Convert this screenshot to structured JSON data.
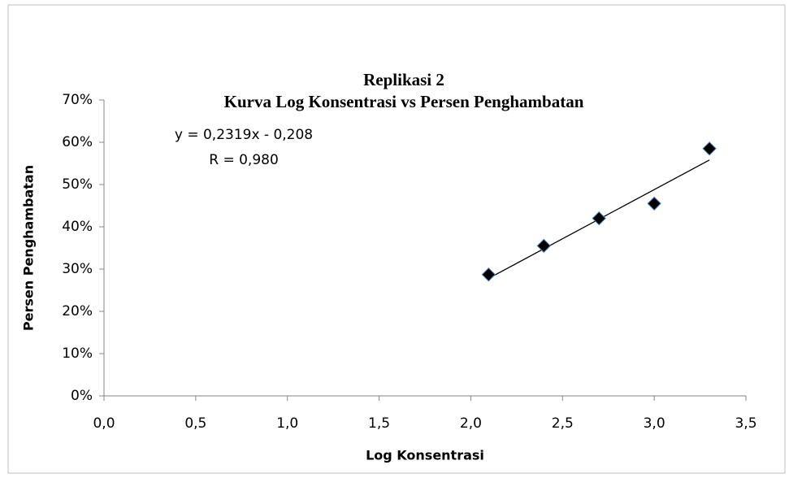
{
  "chart_data": {
    "type": "scatter",
    "title": "Replikasi 2",
    "subtitle": "Kurva Log Konsentrasi vs Persen Penghambatan",
    "xlabel": "Log Konsentrasi",
    "ylabel": "Persen Penghambatan",
    "annotations": [
      "y = 0,2319x - 0,208",
      "R = 0,980"
    ],
    "x": [
      2.097,
      2.398,
      2.699,
      3.0,
      3.301
    ],
    "values": [
      28.7,
      35.5,
      42.0,
      45.5,
      58.5
    ],
    "color": "#000000",
    "trendline": {
      "x": [
        2.097,
        3.301
      ],
      "values": [
        27.8,
        55.8
      ],
      "color": "#000000"
    },
    "xlim": [
      0,
      3.5
    ],
    "xticks": [
      {
        "value": 0,
        "label": "0,0"
      },
      {
        "value": 0.5,
        "label": "0,5"
      },
      {
        "value": 1,
        "label": "1,0"
      },
      {
        "value": 1.5,
        "label": "1,5"
      },
      {
        "value": 2,
        "label": "2,0"
      },
      {
        "value": 2.5,
        "label": "2,5"
      },
      {
        "value": 3,
        "label": "3,0"
      },
      {
        "value": 3.5,
        "label": "3,5"
      }
    ],
    "ylim": [
      0,
      70
    ],
    "yticks": [
      {
        "value": 0,
        "label": "0%"
      },
      {
        "value": 10,
        "label": "10%"
      },
      {
        "value": 20,
        "label": "20%"
      },
      {
        "value": 30,
        "label": "30%"
      },
      {
        "value": 40,
        "label": "40%"
      },
      {
        "value": 50,
        "label": "50%"
      },
      {
        "value": 60,
        "label": "60%"
      },
      {
        "value": 70,
        "label": "70%"
      }
    ],
    "grid": false
  }
}
